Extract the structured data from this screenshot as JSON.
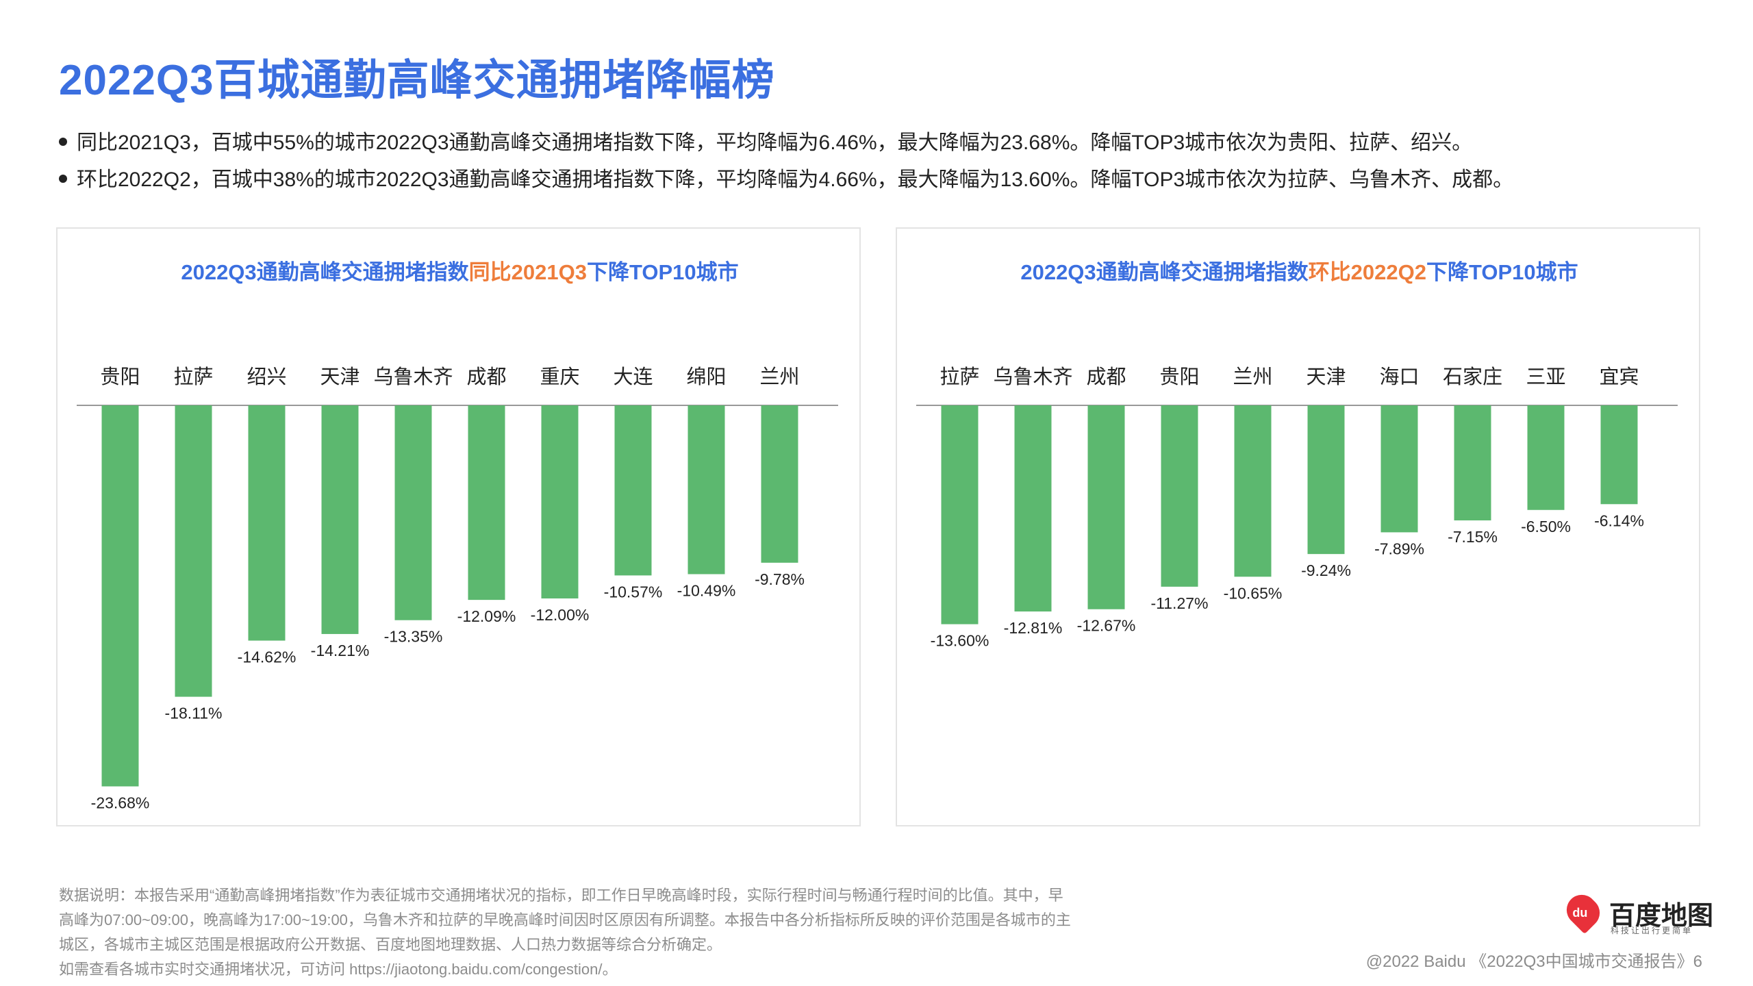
{
  "title": "2022Q3百城通勤高峰交通拥堵降幅榜",
  "bullets": [
    "同比2021Q3，百城中55%的城市2022Q3通勤高峰交通拥堵指数下降，平均降幅为6.46%，最大降幅为23.68%。降幅TOP3城市依次为贵阳、拉萨、绍兴。",
    "环比2022Q2，百城中38%的城市2022Q3通勤高峰交通拥堵指数下降，平均降幅为4.66%，最大降幅为13.60%。降幅TOP3城市依次为拉萨、乌鲁木齐、成都。"
  ],
  "colors": {
    "title": "#3b6fe0",
    "highlight": "#ee7d3b",
    "bar": "#5cb86f",
    "axis": "#999999"
  },
  "chart_data": [
    {
      "type": "bar",
      "title_parts": [
        "2022Q3通勤高峰交通拥堵指数",
        "同比2021Q3",
        "下降TOP10城市"
      ],
      "categories": [
        "贵阳",
        "拉萨",
        "绍兴",
        "天津",
        "乌鲁木齐",
        "成都",
        "重庆",
        "大连",
        "绵阳",
        "兰州"
      ],
      "values": [
        -23.68,
        -18.11,
        -14.62,
        -14.21,
        -13.35,
        -12.09,
        -12.0,
        -10.57,
        -10.49,
        -9.78
      ],
      "value_labels": [
        "-23.68%",
        "-18.11%",
        "-14.62%",
        "-14.21%",
        "-13.35%",
        "-12.09%",
        "-12.00%",
        "-10.57%",
        "-10.49%",
        "-9.78%"
      ],
      "ylim": [
        -24,
        0
      ],
      "grid": false,
      "legend": "none"
    },
    {
      "type": "bar",
      "title_parts": [
        "2022Q3通勤高峰交通拥堵指数",
        "环比2022Q2",
        "下降TOP10城市"
      ],
      "categories": [
        "拉萨",
        "乌鲁木齐",
        "成都",
        "贵阳",
        "兰州",
        "天津",
        "海口",
        "石家庄",
        "三亚",
        "宜宾"
      ],
      "values": [
        -13.6,
        -12.81,
        -12.67,
        -11.27,
        -10.65,
        -9.24,
        -7.89,
        -7.15,
        -6.5,
        -6.14
      ],
      "value_labels": [
        "-13.60%",
        "-12.81%",
        "-12.67%",
        "-11.27%",
        "-10.65%",
        "-9.24%",
        "-7.89%",
        "-7.15%",
        "-6.50%",
        "-6.14%"
      ],
      "ylim": [
        -24,
        0
      ],
      "grid": false,
      "legend": "none"
    }
  ],
  "footnote": [
    "数据说明：本报告采用“通勤高峰拥堵指数”作为表征城市交通拥堵状况的指标，即工作日早晚高峰时段，实际行程时间与畅通行程时间的比值。其中，早",
    "高峰为07:00~09:00，晚高峰为17:00~19:00，乌鲁木齐和拉萨的早晚高峰时间因时区原因有所调整。本报告中各分析指标所反映的评价范围是各城市的主",
    "城区，各城市主城区范围是根据政府公开数据、百度地图地理数据、人口热力数据等综合分析确定。",
    "如需查看各城市实时交通拥堵状况，可访问 https://jiaotong.baidu.com/congestion/。"
  ],
  "logo": {
    "mark": "du",
    "name": "百度地图",
    "slogan": "科技让出行更简单"
  },
  "copyright": "@2022 Baidu 《2022Q3中国城市交通报告》6"
}
